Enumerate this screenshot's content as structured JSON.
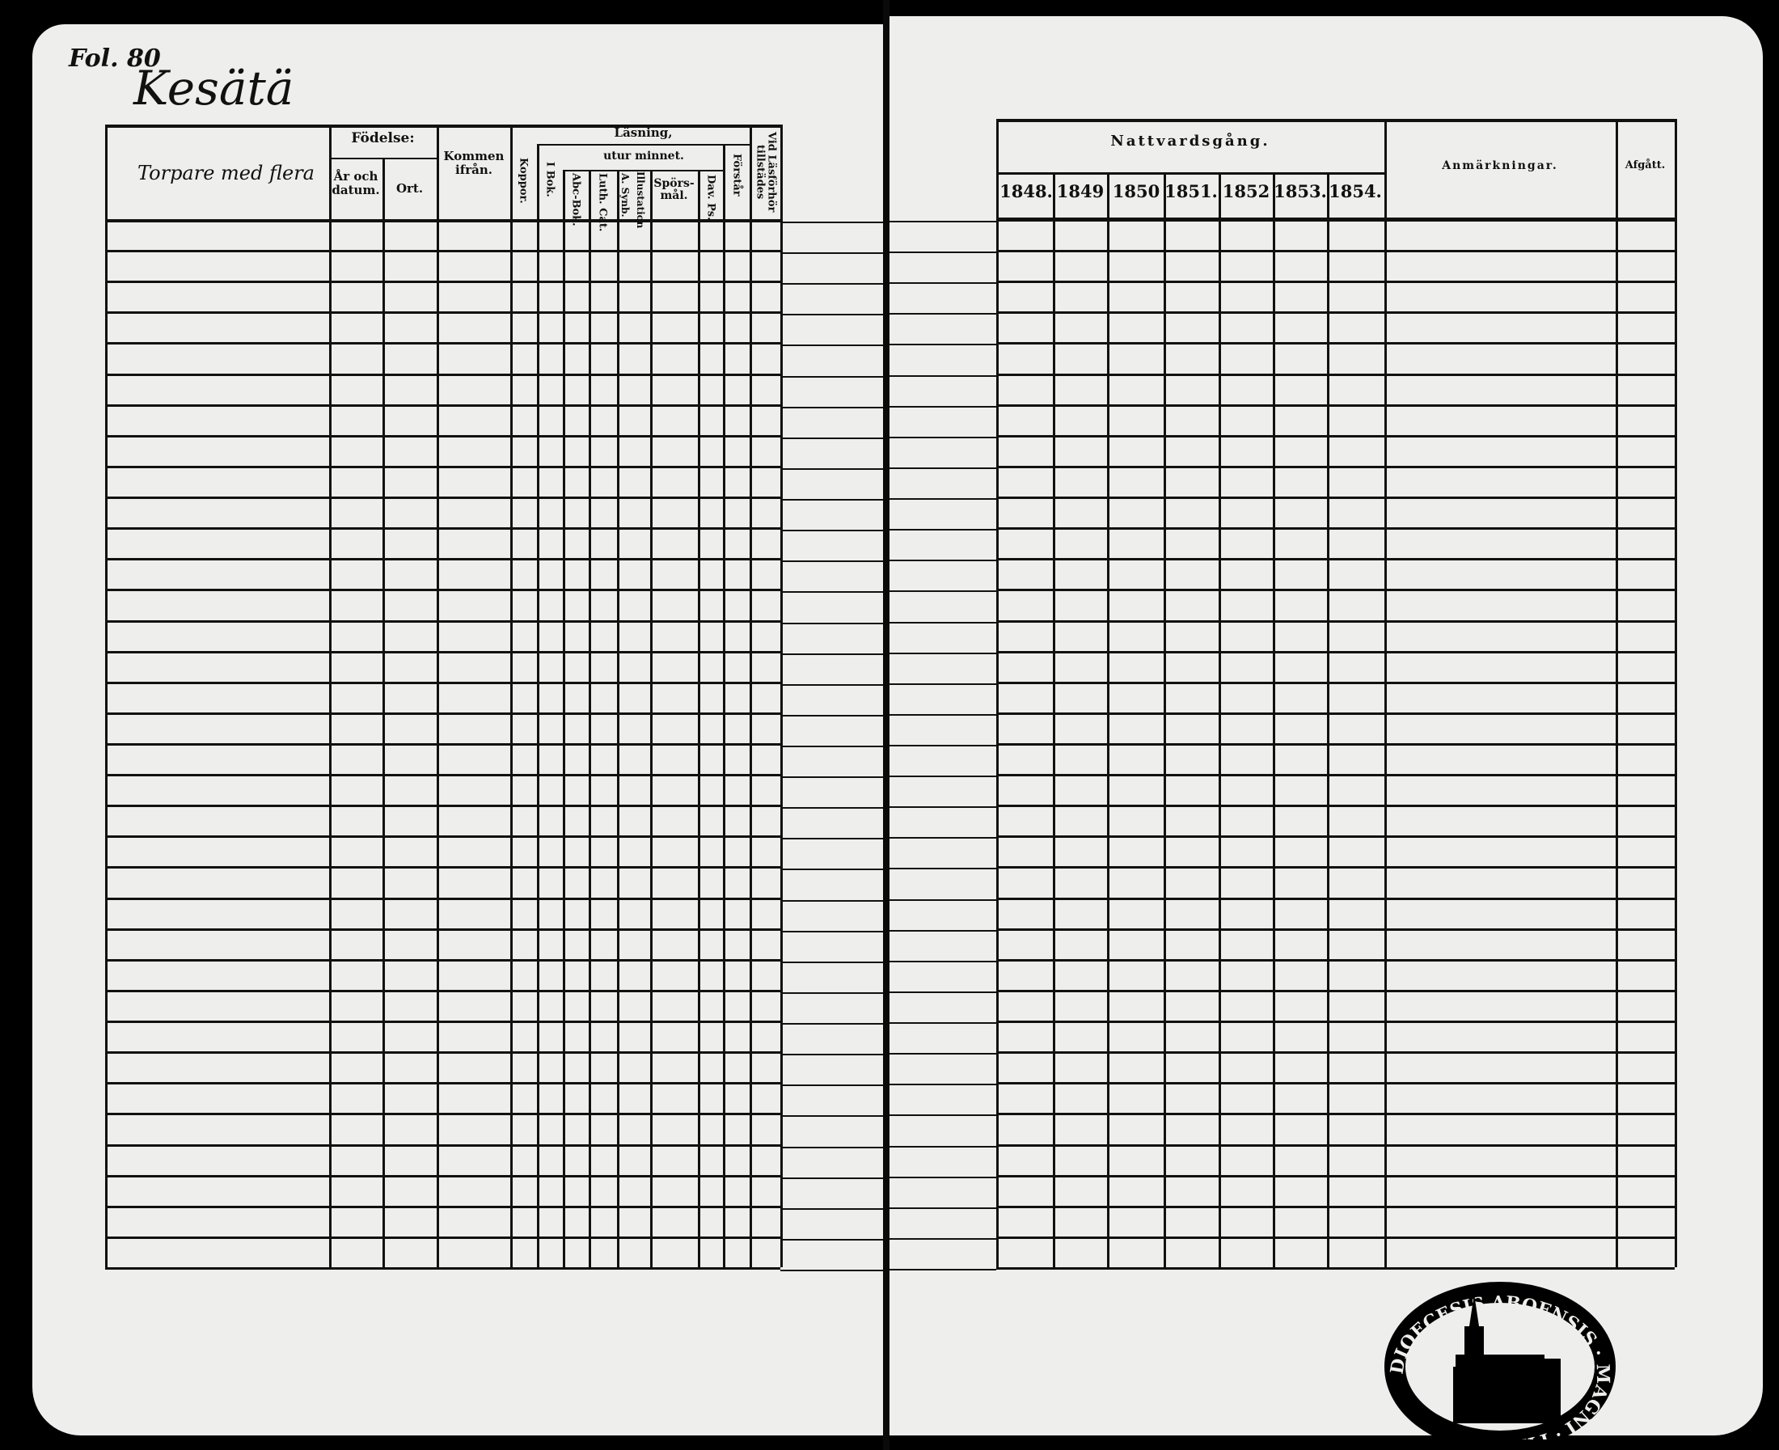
{
  "page_label": "Fol. 80",
  "village": "Kesätä",
  "row_group_label": "Torpare med flera",
  "left_headers": {
    "fodelse": "Födelse:",
    "ar_och_datum": "År och datum.",
    "ort": "Ort.",
    "kommen_ifran": "Kommen ifrån.",
    "koppor": "Koppor.",
    "lasning": "Läsning,",
    "utur_minnet": "utur minnet.",
    "i_bok": "I Bok.",
    "abc_bok": "Abc-Bok.",
    "luth_cat": "Luth. Cat.",
    "a_synb": "A. Synb.",
    "illustation": "Illustation",
    "sporsmal": "Spörs-mål.",
    "dav_ps": "Dav. Ps.",
    "forstar": "Förstår",
    "vid_lasforhor": "Vid Läsförhör tillstädes"
  },
  "right_headers": {
    "nattvardsgang": "Nattvardsgång.",
    "years": [
      "1848.",
      "1849",
      "1850",
      "1851.",
      "1852",
      "1853.",
      "1854."
    ],
    "anmarkningar": "Anmärkningar.",
    "afgatt": "Afgått."
  },
  "stamp": {
    "text": "DIOECESIS ABOENSIS · MAGNI · FINL ·"
  },
  "colors": {
    "paper": "#eeeeec",
    "ink": "#111111",
    "background": "#000000"
  }
}
